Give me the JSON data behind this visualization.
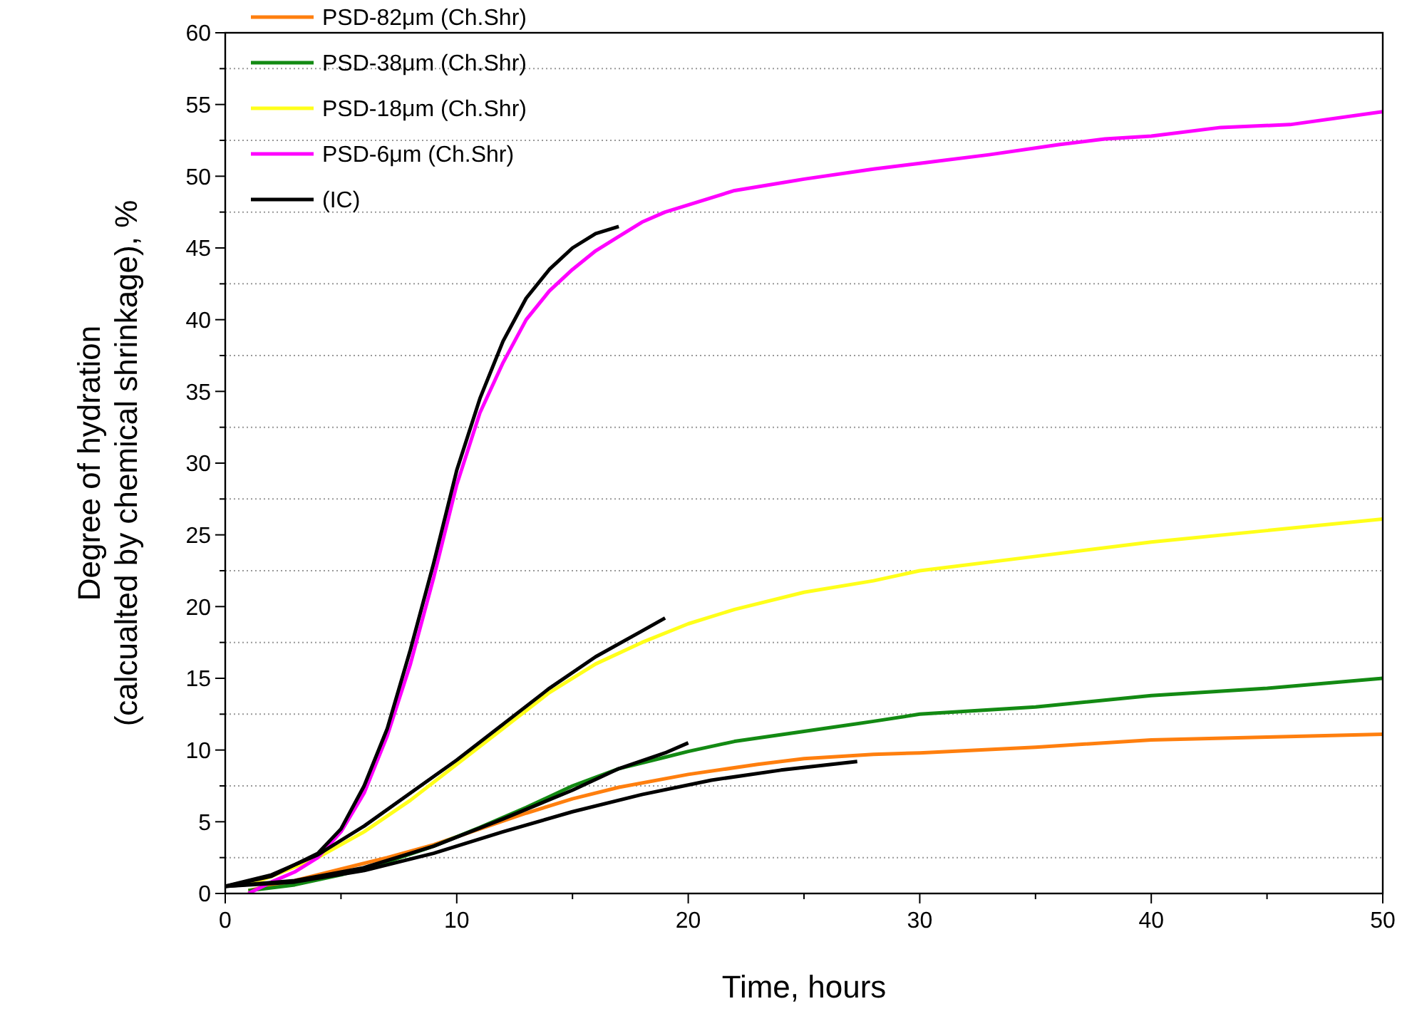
{
  "chart_data": {
    "type": "line",
    "xlabel": "Time, hours",
    "ylabel": "Degree of hydration\n(calcualted by chemical shrinkage), %",
    "xlim": [
      0,
      50
    ],
    "ylim": [
      0,
      60
    ],
    "xticks": [
      0,
      {
        "value": 5,
        "label": null
      },
      10,
      {
        "value": 15,
        "label": null
      },
      20,
      {
        "value": 25,
        "label": null
      },
      30,
      {
        "value": 35,
        "label": null
      },
      40,
      {
        "value": 45,
        "label": null
      },
      50
    ],
    "yticks": [
      0,
      {
        "value": 2.5,
        "label": null
      },
      5,
      {
        "value": 7.5,
        "label": null
      },
      10,
      {
        "value": 12.5,
        "label": null
      },
      15,
      {
        "value": 17.5,
        "label": null
      },
      20,
      {
        "value": 22.5,
        "label": null
      },
      25,
      {
        "value": 27.5,
        "label": null
      },
      30,
      {
        "value": 32.5,
        "label": null
      },
      35,
      {
        "value": 37.5,
        "label": null
      },
      40,
      {
        "value": 42.5,
        "label": null
      },
      45,
      {
        "value": 47.5,
        "label": null
      },
      50,
      {
        "value": 52.5,
        "label": null
      },
      55,
      {
        "value": 57.5,
        "label": null
      },
      60
    ],
    "grid": "y",
    "legend": "top left",
    "marker": "none",
    "line_style": "solid",
    "series": [
      {
        "name": "PSD-82μm (Ch.Shr)",
        "color": "#ff7f0e",
        "x": [
          1,
          3,
          5,
          7,
          9,
          11,
          13,
          15,
          17,
          20,
          23,
          25,
          28,
          30,
          35,
          40,
          45,
          50
        ],
        "values": [
          0.2,
          0.9,
          1.7,
          2.5,
          3.4,
          4.5,
          5.6,
          6.6,
          7.4,
          8.3,
          9,
          9.4,
          9.7,
          9.8,
          10.2,
          10.7,
          10.9,
          11.1
        ]
      },
      {
        "name": "PSD-38μm (Ch.Shr)",
        "color": "#138a13",
        "x": [
          1,
          3,
          5,
          7,
          9,
          11,
          13,
          15,
          17,
          19,
          20,
          22,
          25,
          28,
          30,
          35,
          40,
          45,
          50
        ],
        "values": [
          0.2,
          0.6,
          1.3,
          2.2,
          3.3,
          4.6,
          6,
          7.5,
          8.7,
          9.5,
          9.9,
          10.6,
          11.3,
          12,
          12.5,
          13,
          13.8,
          14.3,
          15
        ]
      },
      {
        "name": "PSD-18μm (Ch.Shr)",
        "color": "#ffff1a",
        "x": [
          1,
          2,
          4,
          6,
          8,
          10,
          12,
          14,
          16,
          18,
          20,
          22,
          25,
          28,
          30,
          35,
          40,
          45,
          50
        ],
        "values": [
          0.6,
          1.2,
          2.5,
          4.3,
          6.5,
          9,
          11.5,
          14,
          16,
          17.5,
          18.8,
          19.8,
          21,
          21.8,
          22.5,
          23.5,
          24.5,
          25.3,
          26.1
        ]
      },
      {
        "name": "PSD-6μm (Ch.Shr)",
        "color": "#ff00ff",
        "x": [
          1,
          2,
          3,
          4,
          5,
          6,
          7,
          8,
          9,
          10,
          11,
          12,
          13,
          14,
          15,
          16,
          17,
          18,
          19,
          20,
          22,
          25,
          28,
          30,
          33,
          36,
          38,
          40,
          43,
          46,
          50
        ],
        "values": [
          0,
          0.8,
          1.5,
          2.5,
          4.3,
          7,
          11,
          16,
          22,
          28.5,
          33.5,
          37,
          40,
          42,
          43.5,
          44.8,
          45.8,
          46.8,
          47.5,
          48,
          49,
          49.8,
          50.5,
          50.9,
          51.5,
          52.2,
          52.6,
          52.8,
          53.4,
          53.6,
          54.5
        ]
      },
      {
        "name": "(IC)",
        "color": "#000000",
        "x": [
          0,
          2,
          4,
          5,
          6,
          7,
          8,
          9,
          10,
          11,
          12,
          13,
          14,
          15,
          16,
          17
        ],
        "values": [
          0.5,
          1.2,
          2.8,
          4.5,
          7.5,
          11.5,
          17,
          23,
          29.5,
          34.5,
          38.5,
          41.5,
          43.5,
          45,
          46,
          46.5
        ]
      },
      {
        "color": "#000000",
        "x": [
          0,
          2,
          4,
          6,
          8,
          10,
          12,
          14,
          16,
          18,
          19
        ],
        "values": [
          0.5,
          1.3,
          2.7,
          4.7,
          7,
          9.3,
          11.8,
          14.3,
          16.5,
          18.3,
          19.2
        ]
      },
      {
        "color": "#000000",
        "x": [
          0,
          3,
          6,
          9,
          12,
          15,
          17,
          19,
          20
        ],
        "values": [
          0.5,
          0.9,
          1.8,
          3.3,
          5.2,
          7.2,
          8.7,
          9.8,
          10.5
        ]
      },
      {
        "color": "#000000",
        "x": [
          0,
          3,
          6,
          9,
          12,
          15,
          18,
          21,
          24,
          27.3
        ],
        "values": [
          0.5,
          0.8,
          1.6,
          2.8,
          4.3,
          5.7,
          6.9,
          7.9,
          8.6,
          9.2
        ]
      }
    ]
  }
}
